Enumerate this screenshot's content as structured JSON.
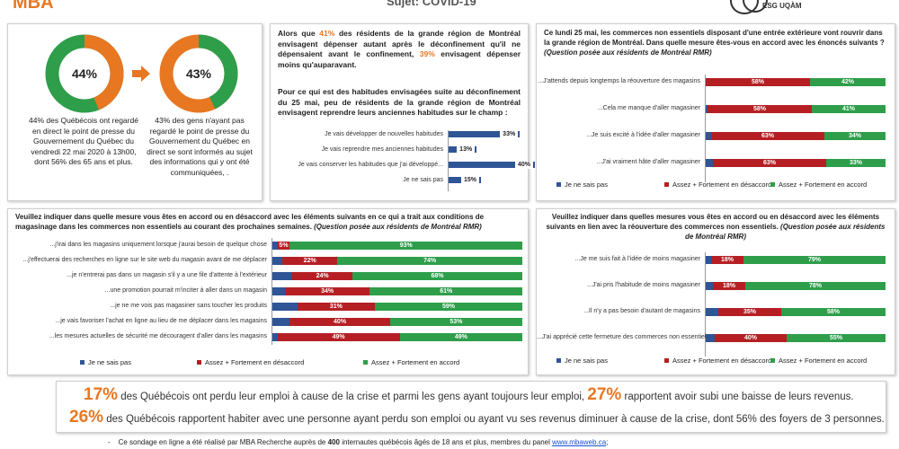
{
  "header": {
    "logo_left": "MBA",
    "title": "Sujet: COVID-19",
    "logo_right": "ESG UQÀM"
  },
  "colors": {
    "orange": "#e87722",
    "green": "#2e9e4a",
    "blue": "#2f5597",
    "red": "#b51f24",
    "grey": "#d9d9d9"
  },
  "donuts": {
    "left": {
      "value_label": "44%",
      "value": 44,
      "caption": "44% des Québécois ont regardé en direct le point de presse du Gouvernement du Québec du vendredi 22 mai 2020 à 13h00, dont 56% des 65 ans et plus."
    },
    "right": {
      "value_label": "43%",
      "value": 43,
      "caption": "43% des gens n'ayant pas regardé le point de presse du Gouvernement du Québec en direct se sont informés au sujet des informations qui y ont été communiquées, ."
    }
  },
  "middle_panel": {
    "p1_a": "Alors que ",
    "p1_pct1": "41%",
    "p1_b": " des résidents de la grande région de Montréal envisagent dépenser autant après le déconfinement qu'il ne dépensaient avant le confinement, ",
    "p1_pct2": "39%",
    "p1_c": " envisagent dépenser moins qu'auparavant.",
    "p2": "Pour ce qui est des habitudes envisagées suite au déconfinement du 25 mai, peu de résidents de la grande région de Montréal envisagent reprendre leurs anciennes habitudes sur le champ :"
  },
  "chart_data": [
    {
      "id": "habitudes",
      "type": "bar",
      "title": "",
      "categories": [
        "Je vais développer de nouvelles habitudes",
        "Je vais reprendre mes anciennes habitudes",
        "Je vais conserver les habitudes que j'ai développé...",
        "Je ne sais pas"
      ],
      "series": [
        {
          "values": [
            33,
            13,
            40,
            15
          ]
        }
      ],
      "value_labels": [
        "33%",
        "13%",
        "40%",
        "15%"
      ],
      "xlim": [
        0,
        50
      ]
    },
    {
      "id": "reouverture_exterieur",
      "type": "bar",
      "stacked": true,
      "title": "Ce lundi 25 mai, les commerces non essentiels disposant d'une entrée extérieure vont rouvrir dans la grande région de Montréal. Dans quelle mesure êtes-vous en accord avec les énoncés suivants ? (Question posée aux résidents de Montréal RMR)",
      "categories": [
        "...J'attends depuis longtemps la réouverture des magasins",
        "...Cela me manque d'aller magasiner",
        "...Je suis excité à l'idée d'aller magasiner",
        "...J'ai vraiment hâte d'aller magasiner"
      ],
      "series": [
        {
          "name": "Je ne sais pas",
          "values": [
            0,
            1,
            3,
            4
          ]
        },
        {
          "name": "Assez + Fortement en désaccord",
          "values": [
            58,
            58,
            63,
            63
          ]
        },
        {
          "name": "Assez + Fortement en accord",
          "values": [
            42,
            41,
            34,
            33
          ]
        }
      ],
      "value_labels": [
        [
          "58%",
          "42%"
        ],
        [
          "58%",
          "41%"
        ],
        [
          "63%",
          "34%"
        ],
        [
          "63%",
          "33%"
        ]
      ],
      "legend": "bottom"
    },
    {
      "id": "conditions_magasinage",
      "type": "bar",
      "stacked": true,
      "title": "Veuillez indiquer dans quelle mesure vous êtes en accord ou en désaccord avec les éléments suivants en ce qui a trait aux conditions de magasinage dans les commerces non essentiels au courant des prochaines semaines. (Question posée aux résidents de Montréal RMR)",
      "categories": [
        "...j'irai dans les magasins uniquement lorsque j'aurai besoin de quelque chose",
        "...j'effectuerai des recherches en ligne sur le site web du magasin avant de me déplacer",
        "...je n'entrerai pas dans un magasin s'il y a une file d'attente à l'extérieur",
        "...une promotion pourrait m'inciter à aller dans un magasin",
        "...je ne me vois pas magasiner sans toucher les produits",
        "...je vais favoriser l'achat en ligne au lieu de me déplacer dans les magasins",
        "...les mesures actuelles de sécurité me découragent d'aller dans les magasins"
      ],
      "series": [
        {
          "name": "Je ne sais pas",
          "values": [
            2,
            4,
            8,
            5,
            10,
            7,
            2
          ]
        },
        {
          "name": "Assez + Fortement en désaccord",
          "values": [
            5,
            22,
            24,
            34,
            31,
            40,
            49
          ]
        },
        {
          "name": "Assez + Fortement en accord",
          "values": [
            93,
            74,
            68,
            61,
            59,
            53,
            49
          ]
        }
      ],
      "value_labels": [
        [
          "5%",
          "93%"
        ],
        [
          "22%",
          "74%"
        ],
        [
          "24%",
          "68%"
        ],
        [
          "34%",
          "61%"
        ],
        [
          "31%",
          "59%"
        ],
        [
          "40%",
          "53%"
        ],
        [
          "49%",
          "49%"
        ]
      ],
      "legend": "bottom"
    },
    {
      "id": "reouverture_mesures",
      "type": "bar",
      "stacked": true,
      "title": "Veuillez indiquer dans quelles mesures vous êtes en accord ou en désaccord avec les éléments suivants en lien avec la réouverture des commerces non essentiels. (Question posée aux résidents de Montréal RMR)",
      "categories": [
        "...Je me suis fait à l'idée de moins magasiner",
        "...J'ai pris l'habitude de moins magasiner",
        "...Il n'y a pas besoin d'autant de magasins",
        "...J'ai apprécié cette fermeture des commerces non essentiels"
      ],
      "series": [
        {
          "name": "Je ne sais pas",
          "values": [
            3,
            4,
            7,
            5
          ]
        },
        {
          "name": "Assez + Fortement en désaccord",
          "values": [
            18,
            18,
            35,
            40
          ]
        },
        {
          "name": "Assez + Fortement en accord",
          "values": [
            79,
            78,
            58,
            55
          ]
        }
      ],
      "value_labels": [
        [
          "18%",
          "79%"
        ],
        [
          "18%",
          "78%"
        ],
        [
          "35%",
          "58%"
        ],
        [
          "40%",
          "55%"
        ]
      ],
      "legend": "bottom"
    }
  ],
  "bottom_panel": {
    "l1_pct1": "17%",
    "l1_a": " des Québécois ont perdu leur emploi à cause de la crise et parmi les gens ayant toujours leur emploi, ",
    "l1_pct2": "27%",
    "l1_b": " rapportent avoir subi une baisse de leurs revenus.",
    "l2_pct": "26%",
    "l2_a": " des Québécois rapportent habiter avec une personne ayant perdu son emploi ou ayant vu ses revenus diminuer à cause de la crise, dont 56% des foyers de 3 personnes."
  },
  "footer": {
    "bullet": "-",
    "text_a": "Ce sondage en ligne a été réalisé par MBA Recherche auprès de ",
    "count": "400",
    "text_b": " internautes québécois âgés de 18 ans et plus, membres du panel ",
    "link": "www.mbaweb.ca",
    "text_c": ";"
  }
}
